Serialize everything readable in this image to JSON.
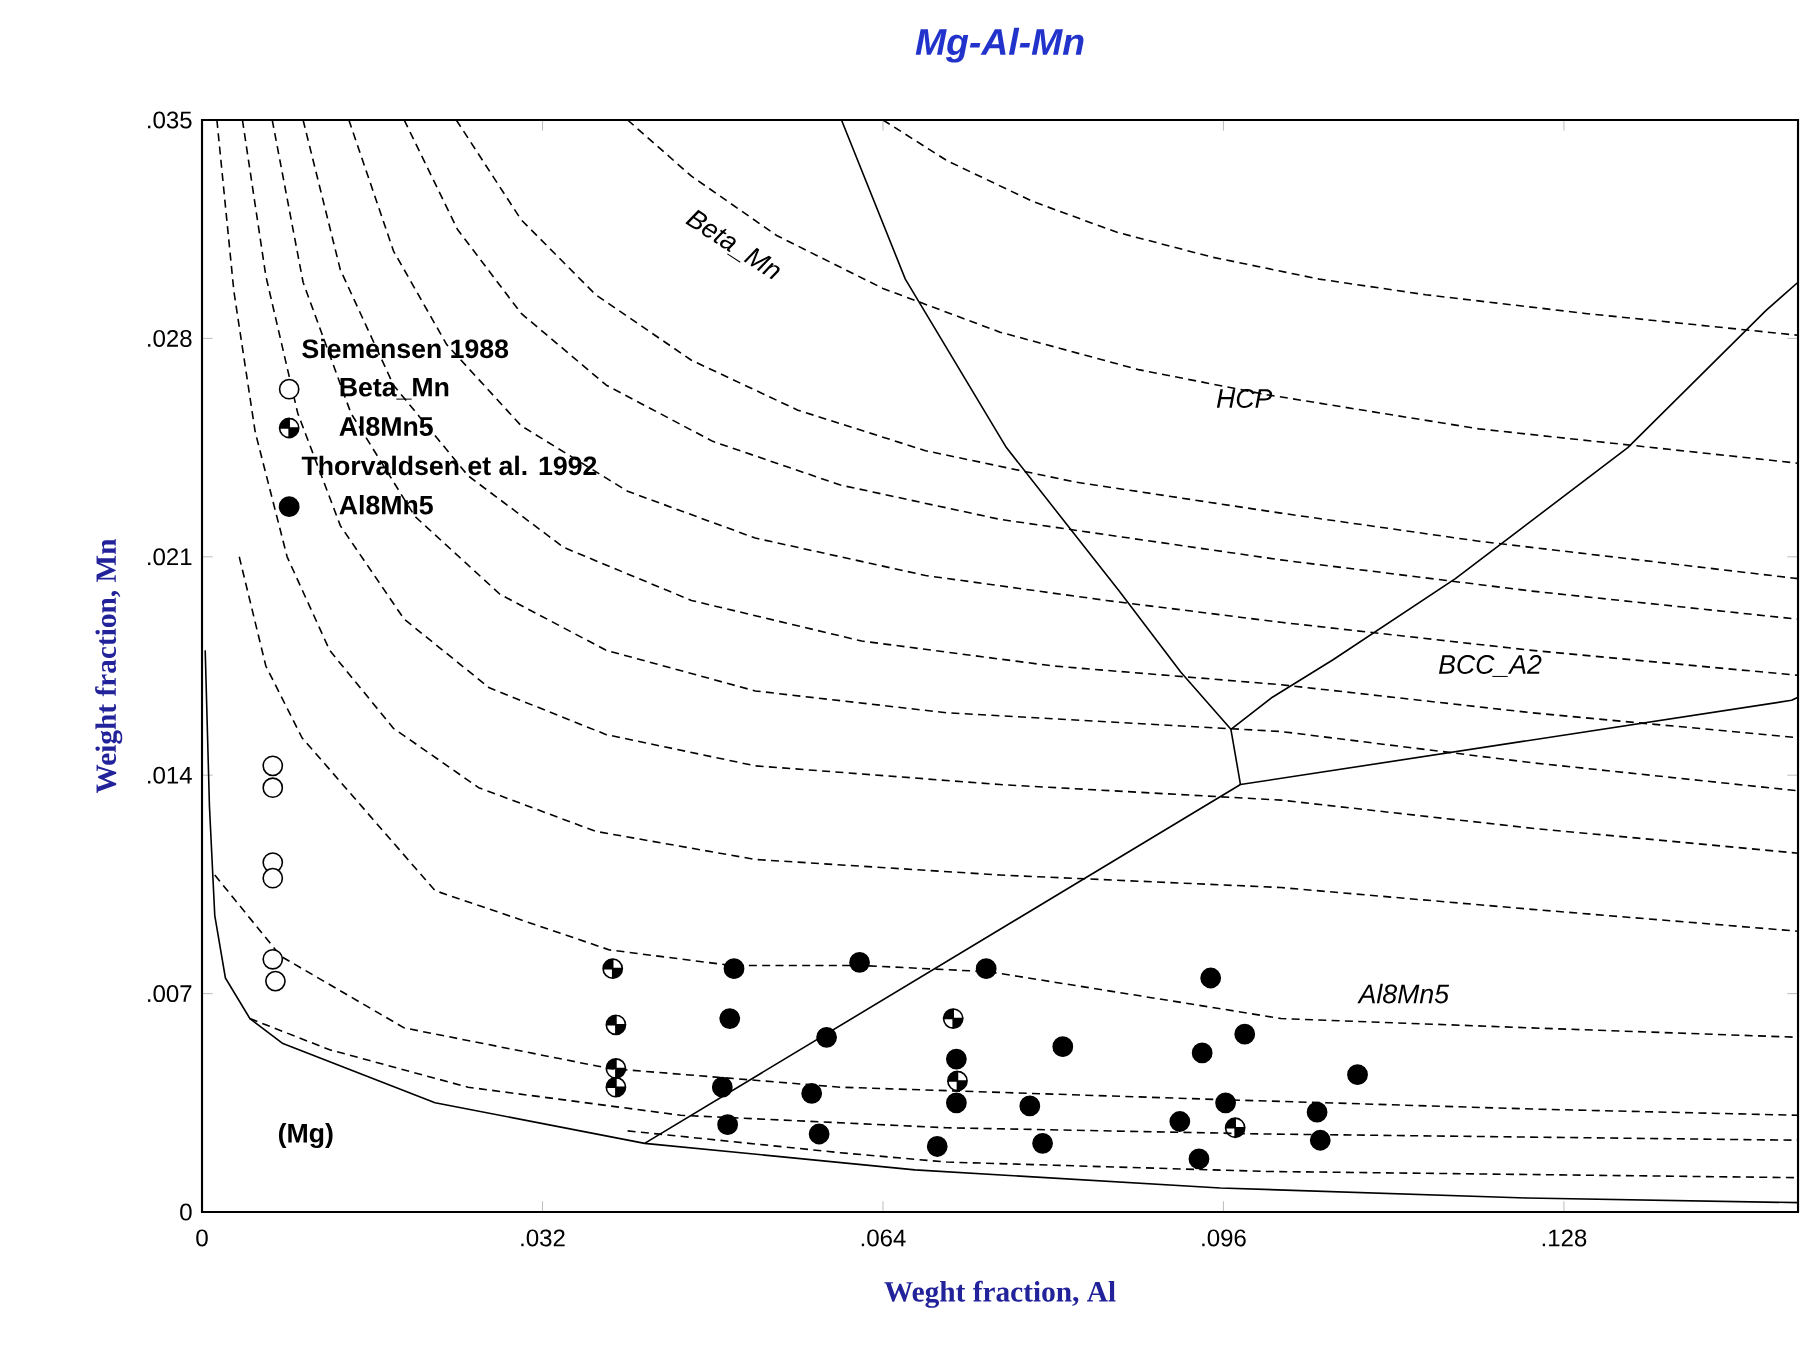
{
  "chart_data": {
    "type": "scatter",
    "title": "Mg-Al-Mn",
    "xlabel": "Weght fraction, Al",
    "ylabel": "Weight fraction, Mn",
    "xlim": [
      0,
      0.15
    ],
    "ylim": [
      0,
      0.035
    ],
    "xticks": [
      0,
      {
        "value": 0.032,
        "label": ".032"
      },
      {
        "value": 0.064,
        "label": ".064"
      },
      {
        "value": 0.096,
        "label": ".096"
      },
      {
        "value": 0.128,
        "label": ".128"
      }
    ],
    "yticks": [
      0,
      {
        "value": 0.007,
        "label": ".007"
      },
      {
        "value": 0.014,
        "label": ".014"
      },
      {
        "value": 0.021,
        "label": ".021"
      },
      {
        "value": 0.028,
        "label": ".028"
      },
      {
        "value": 0.035,
        "label": ".035"
      }
    ],
    "legend": "left",
    "annotations": [
      "Siemensen 1988",
      "Thorvaldsen et al. 1992",
      "Beta_Mn",
      "HCP",
      "BCC_A2",
      "Al8Mn5",
      "(Mg)"
    ],
    "series": [
      {
        "type": "line",
        "line_style": "solid",
        "color": "#000000",
        "x": [
          0.0601,
          0.0661,
          0.0756,
          0.0862,
          0.092,
          0.0967,
          0.1006,
          0.1063,
          0.1178,
          0.134,
          0.147,
          0.15
        ],
        "values": [
          0.035,
          0.0299,
          0.0245,
          0.0199,
          0.0173,
          0.01547,
          0.0165,
          0.0177,
          0.0203,
          0.0245,
          0.0289,
          0.0298
        ]
      },
      {
        "type": "line",
        "line_style": "solid",
        "color": "#000000",
        "x": [
          0.0967,
          0.0976
        ],
        "values": [
          0.01547,
          0.0137
        ]
      },
      {
        "type": "line",
        "line_style": "solid",
        "color": "#000000",
        "x": [
          0.0416,
          0.0976,
          0.1494,
          0.15
        ],
        "values": [
          0.0022,
          0.0137,
          0.0164,
          0.0165
        ]
      },
      {
        "type": "line",
        "line_style": "solid",
        "color": "#000000",
        "x": [
          0.0003,
          0.0007,
          0.0012,
          0.0022,
          0.0045,
          0.0076,
          0.0219,
          0.0416,
          0.067,
          0.0957,
          0.1245,
          0.15
        ],
        "values": [
          0.018,
          0.013,
          0.0095,
          0.0075,
          0.0062,
          0.0054,
          0.0035,
          0.0022,
          0.00135,
          0.00077,
          0.00045,
          0.0003
        ]
      },
      {
        "type": "line",
        "line_style": "dashed",
        "color": "#000000",
        "x": [
          0.064,
          0.07,
          0.078,
          0.086,
          0.095,
          0.105,
          0.115,
          0.13,
          0.15
        ],
        "values": [
          0.035,
          0.0337,
          0.0324,
          0.0314,
          0.0306,
          0.0299,
          0.0294,
          0.0288,
          0.0281
        ]
      },
      {
        "type": "line",
        "line_style": "dashed",
        "color": "#000000",
        "x": [
          0.04,
          0.046,
          0.054,
          0.064,
          0.075,
          0.088,
          0.1,
          0.12,
          0.15
        ],
        "values": [
          0.035,
          0.0332,
          0.0313,
          0.0296,
          0.0282,
          0.027,
          0.0262,
          0.0251,
          0.024
        ]
      },
      {
        "type": "line",
        "line_style": "dashed",
        "color": "#000000",
        "x": [
          0.0239,
          0.03,
          0.037,
          0.046,
          0.056,
          0.068,
          0.082,
          0.1014,
          0.12,
          0.15
        ],
        "values": [
          0.035,
          0.0318,
          0.0294,
          0.0273,
          0.0257,
          0.0244,
          0.0234,
          0.0224,
          0.0215,
          0.0203
        ]
      },
      {
        "type": "line",
        "line_style": "dashed",
        "color": "#000000",
        "x": [
          0.019,
          0.024,
          0.03,
          0.038,
          0.048,
          0.06,
          0.075,
          0.1014,
          0.125,
          0.15
        ],
        "values": [
          0.035,
          0.0315,
          0.0288,
          0.0265,
          0.0247,
          0.0233,
          0.0222,
          0.0209,
          0.0199,
          0.019
        ]
      },
      {
        "type": "line",
        "line_style": "dashed",
        "color": "#000000",
        "x": [
          0.0138,
          0.018,
          0.023,
          0.03,
          0.04,
          0.052,
          0.068,
          0.085,
          0.1014,
          0.125,
          0.15
        ],
        "values": [
          0.035,
          0.0308,
          0.0278,
          0.0252,
          0.0231,
          0.0216,
          0.0204,
          0.0196,
          0.0189,
          0.018,
          0.0172
        ]
      },
      {
        "type": "line",
        "line_style": "dashed",
        "color": "#000000",
        "x": [
          0.0095,
          0.013,
          0.018,
          0.025,
          0.034,
          0.046,
          0.062,
          0.08,
          0.1014,
          0.125,
          0.15
        ],
        "values": [
          0.035,
          0.0302,
          0.0265,
          0.0236,
          0.0213,
          0.0196,
          0.0183,
          0.0175,
          0.0169,
          0.016,
          0.0152
        ]
      },
      {
        "type": "line",
        "line_style": "dashed",
        "color": "#000000",
        "x": [
          0.0066,
          0.0095,
          0.014,
          0.02,
          0.028,
          0.038,
          0.052,
          0.07,
          0.1014,
          0.125,
          0.15
        ],
        "values": [
          0.035,
          0.0298,
          0.0256,
          0.0223,
          0.0198,
          0.018,
          0.0167,
          0.016,
          0.0154,
          0.0144,
          0.0135
        ]
      },
      {
        "type": "line",
        "line_style": "dashed",
        "color": "#000000",
        "x": [
          0.0038,
          0.006,
          0.009,
          0.013,
          0.019,
          0.027,
          0.038,
          0.052,
          0.075,
          0.1014,
          0.125,
          0.15
        ],
        "values": [
          0.035,
          0.03,
          0.0256,
          0.022,
          0.019,
          0.0168,
          0.0153,
          0.0143,
          0.0137,
          0.0132,
          0.0123,
          0.0115
        ]
      },
      {
        "type": "line",
        "line_style": "dashed",
        "color": "#000000",
        "x": [
          0.0014,
          0.003,
          0.005,
          0.008,
          0.012,
          0.018,
          0.026,
          0.037,
          0.052,
          0.075,
          0.1014,
          0.125,
          0.15
        ],
        "values": [
          0.035,
          0.0295,
          0.025,
          0.021,
          0.018,
          0.0155,
          0.0136,
          0.0122,
          0.0113,
          0.0108,
          0.0104,
          0.0097,
          0.009
        ]
      },
      {
        "type": "line",
        "line_style": "dashed",
        "color": "#000000",
        "x": [
          0.0035,
          0.006,
          0.0094,
          0.0219,
          0.0383,
          0.0498,
          0.062,
          0.074,
          0.096,
          0.1014,
          0.125,
          0.15
        ],
        "values": [
          0.021,
          0.0175,
          0.0152,
          0.0103,
          0.0084,
          0.0079,
          0.0079,
          0.0077,
          0.0065,
          0.0062,
          0.0059,
          0.0056
        ]
      },
      {
        "type": "line",
        "line_style": "dashed",
        "color": "#000000",
        "x": [
          0.0012,
          0.0074,
          0.019,
          0.0383,
          0.06,
          0.096,
          0.125,
          0.15
        ],
        "values": [
          0.0108,
          0.0082,
          0.0059,
          0.0046,
          0.004,
          0.0036,
          0.0033,
          0.0031
        ]
      },
      {
        "type": "line",
        "line_style": "dashed",
        "color": "#000000",
        "x": [
          0.0045,
          0.012,
          0.025,
          0.045,
          0.07,
          0.1,
          0.15
        ],
        "values": [
          0.0062,
          0.0052,
          0.004,
          0.0031,
          0.0027,
          0.0025,
          0.0023
        ]
      },
      {
        "type": "line",
        "line_style": "dashed",
        "color": "#000000",
        "x": [
          0.04,
          0.06,
          0.07,
          0.1,
          0.15
        ],
        "values": [
          0.0026,
          0.0019,
          0.0016,
          0.0013,
          0.0011
        ]
      },
      {
        "name": "Beta_Mn",
        "marker": "circle",
        "color": "#ffffff",
        "x": [
          0.00665,
          0.00665,
          0.00665,
          0.00665,
          0.00665,
          0.0069
        ],
        "values": [
          0.0143,
          0.0136,
          0.0112,
          0.0107,
          0.0081,
          0.0074
        ]
      },
      {
        "name": "Al8Mn5",
        "marker": "halfcircle",
        "color": "#000000",
        "x": [
          0.0386,
          0.0389,
          0.0389,
          0.0389,
          0.0706,
          0.071,
          0.0971
        ],
        "values": [
          0.0078,
          0.006,
          0.0046,
          0.004,
          0.0062,
          0.0042,
          0.0027
        ]
      },
      {
        "name": "Al8Mn5",
        "marker": "circle",
        "color": "#000000",
        "x": [
          0.05,
          0.0618,
          0.0737,
          0.0948,
          0.0496,
          0.0587,
          0.098,
          0.0709,
          0.0809,
          0.094,
          0.1086,
          0.0489,
          0.0573,
          0.0709,
          0.0778,
          0.0962,
          0.1048,
          0.0494,
          0.058,
          0.0691,
          0.079,
          0.0919,
          0.1051,
          0.0937
        ],
        "values": [
          0.0078,
          0.008,
          0.0078,
          0.0075,
          0.0062,
          0.0056,
          0.0057,
          0.0049,
          0.0053,
          0.0051,
          0.0044,
          0.004,
          0.0038,
          0.0035,
          0.0034,
          0.0035,
          0.0032,
          0.0028,
          0.0025,
          0.0021,
          0.0022,
          0.0029,
          0.0023,
          0.0017
        ]
      }
    ]
  }
}
